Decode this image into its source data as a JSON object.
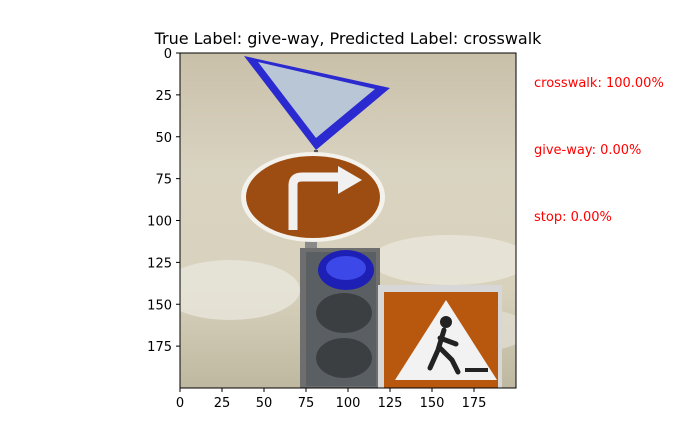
{
  "title": "True Label: give-way, Predicted Label: crosswalk",
  "axes": {
    "x_ticks": [
      "0",
      "25",
      "50",
      "75",
      "100",
      "125",
      "150",
      "175"
    ],
    "y_ticks": [
      "0",
      "25",
      "50",
      "75",
      "100",
      "125",
      "150",
      "175"
    ],
    "xlim": [
      0,
      200
    ],
    "ylim": [
      200,
      0
    ]
  },
  "predictions": [
    {
      "label": "crosswalk: 100.00%",
      "color": "#ff0000"
    },
    {
      "label": "give-way: 0.00%",
      "color": "#ff0000"
    },
    {
      "label": "stop: 0.00%",
      "color": "#ff0000"
    }
  ],
  "image_description_icons": [
    "give-way-sign-icon",
    "turn-right-sign-icon",
    "traffic-light-icon",
    "crosswalk-sign-icon"
  ]
}
